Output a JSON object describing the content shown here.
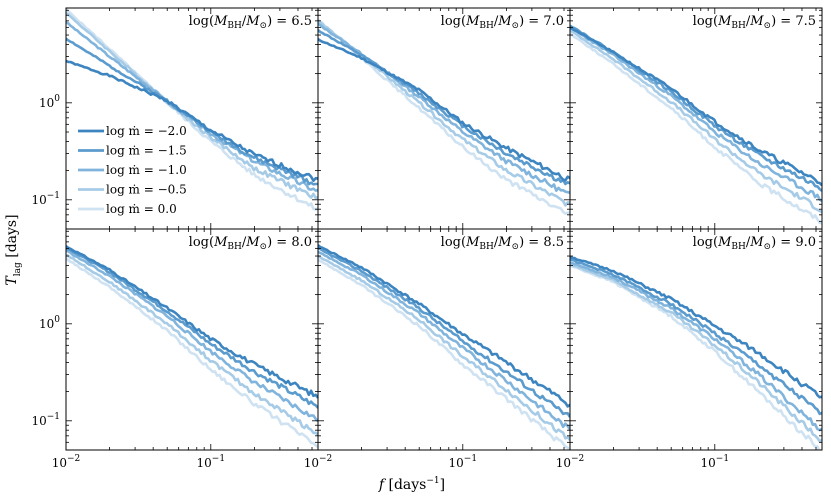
{
  "chart_data": {
    "type": "line",
    "xlabel": "f [days⁻¹]",
    "ylabel": "T_lag [days]",
    "xscale": "log",
    "yscale": "log",
    "xlim": [
      0.01,
      0.55
    ],
    "ylim": [
      0.05,
      9.5
    ],
    "x_tick_labels": [
      "10⁻²",
      "10⁻¹"
    ],
    "y_tick_labels": [
      "10⁻¹",
      "10⁰"
    ],
    "grid": false,
    "legend_position": "left, in first panel",
    "series_colors": [
      "#3d85c0",
      "#5b9bcd",
      "#80b4dc",
      "#a6cbe7",
      "#cfe2f2"
    ],
    "series": [
      {
        "name": "log ṁ = −2.0"
      },
      {
        "name": "log ṁ = −1.5"
      },
      {
        "name": "log ṁ = −1.0"
      },
      {
        "name": "log ṁ = −0.5"
      },
      {
        "name": "log ṁ = 0.0"
      }
    ],
    "panels": [
      {
        "label": "log(M_BH/M⊙) = 6.5",
        "x": [
          0.01,
          0.02,
          0.05,
          0.1,
          0.2,
          0.5
        ],
        "series_values": [
          [
            2.7,
            1.9,
            1.05,
            0.52,
            0.29,
            0.17
          ],
          [
            4.6,
            2.4,
            1.05,
            0.5,
            0.27,
            0.15
          ],
          [
            6.8,
            3.0,
            1.05,
            0.48,
            0.25,
            0.13
          ],
          [
            8.5,
            3.4,
            1.02,
            0.44,
            0.21,
            0.11
          ],
          [
            9.2,
            3.6,
            1.0,
            0.4,
            0.18,
            0.085
          ]
        ]
      },
      {
        "label": "log(M_BH/M⊙) = 7.0",
        "x": [
          0.01,
          0.02,
          0.05,
          0.1,
          0.2,
          0.5
        ],
        "series_values": [
          [
            4.5,
            2.9,
            1.35,
            0.62,
            0.34,
            0.17
          ],
          [
            5.6,
            3.1,
            1.25,
            0.58,
            0.3,
            0.15
          ],
          [
            6.5,
            3.2,
            1.15,
            0.5,
            0.25,
            0.12
          ],
          [
            7.0,
            3.1,
            1.0,
            0.42,
            0.2,
            0.095
          ],
          [
            7.2,
            2.9,
            0.88,
            0.35,
            0.16,
            0.075
          ]
        ]
      },
      {
        "label": "log(M_BH/M⊙) = 7.5",
        "x": [
          0.01,
          0.02,
          0.05,
          0.1,
          0.2,
          0.5
        ],
        "series_values": [
          [
            6.0,
            3.3,
            1.4,
            0.64,
            0.33,
            0.16
          ],
          [
            6.3,
            3.3,
            1.3,
            0.58,
            0.29,
            0.14
          ],
          [
            6.0,
            3.1,
            1.18,
            0.5,
            0.24,
            0.11
          ],
          [
            5.6,
            2.8,
            1.02,
            0.42,
            0.19,
            0.085
          ],
          [
            5.2,
            2.5,
            0.88,
            0.35,
            0.15,
            0.065
          ]
        ]
      },
      {
        "label": "log(M_BH/M⊙) = 8.0",
        "x": [
          0.01,
          0.02,
          0.05,
          0.1,
          0.2,
          0.5
        ],
        "series_values": [
          [
            6.3,
            3.6,
            1.45,
            0.7,
            0.38,
            0.19
          ],
          [
            6.1,
            3.4,
            1.35,
            0.62,
            0.32,
            0.15
          ],
          [
            5.7,
            3.1,
            1.2,
            0.52,
            0.25,
            0.11
          ],
          [
            5.2,
            2.7,
            1.0,
            0.42,
            0.19,
            0.08
          ],
          [
            4.7,
            2.4,
            0.85,
            0.34,
            0.15,
            0.06
          ]
        ]
      },
      {
        "label": "log(M_BH/M⊙) = 8.5",
        "x": [
          0.01,
          0.02,
          0.05,
          0.1,
          0.2,
          0.5
        ],
        "series_values": [
          [
            6.4,
            3.8,
            1.6,
            0.78,
            0.4,
            0.16
          ],
          [
            6.0,
            3.5,
            1.45,
            0.66,
            0.32,
            0.12
          ],
          [
            5.5,
            3.2,
            1.28,
            0.56,
            0.26,
            0.09
          ],
          [
            5.0,
            2.8,
            1.1,
            0.46,
            0.21,
            0.07
          ],
          [
            4.6,
            2.5,
            0.95,
            0.38,
            0.17,
            0.055
          ]
        ]
      },
      {
        "label": "log(M_BH/M⊙) = 9.0",
        "x": [
          0.01,
          0.02,
          0.05,
          0.1,
          0.2,
          0.5
        ],
        "series_values": [
          [
            4.9,
            3.5,
            1.8,
            0.95,
            0.5,
            0.19
          ],
          [
            4.6,
            3.2,
            1.6,
            0.8,
            0.38,
            0.13
          ],
          [
            4.3,
            3.0,
            1.45,
            0.7,
            0.3,
            0.09
          ],
          [
            4.1,
            2.8,
            1.3,
            0.6,
            0.25,
            0.07
          ],
          [
            4.0,
            2.7,
            1.2,
            0.52,
            0.2,
            0.055
          ]
        ]
      }
    ]
  }
}
